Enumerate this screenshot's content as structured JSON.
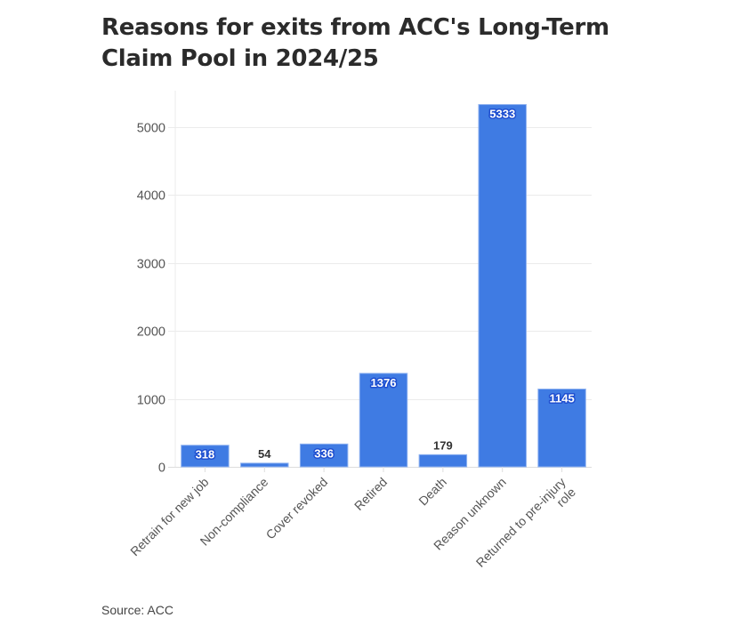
{
  "title": "Reasons for exits from ACC's Long-Term Claim Pool in 2024/25",
  "source": "Source: ACC",
  "colors": {
    "bar": "#3f7be3",
    "bar_stroke": "#8fb2f0",
    "grid": "#ebebeb",
    "axis": "#dddddd"
  },
  "chart_data": {
    "type": "bar",
    "title": "Reasons for exits from ACC's Long-Term Claim Pool in 2024/25",
    "xlabel": "",
    "ylabel": "",
    "categories": [
      "Retrain for new job",
      "Non-compliance",
      "Cover revoked",
      "Retired",
      "Death",
      "Reason unknown",
      "Returned to pre-injury role"
    ],
    "values": [
      318,
      54,
      336,
      1376,
      179,
      5333,
      1145
    ],
    "yticks": [
      0,
      1000,
      2000,
      3000,
      4000,
      5000
    ],
    "ylim": [
      0,
      5500
    ],
    "grid": true,
    "legend": "none",
    "source": "ACC"
  }
}
